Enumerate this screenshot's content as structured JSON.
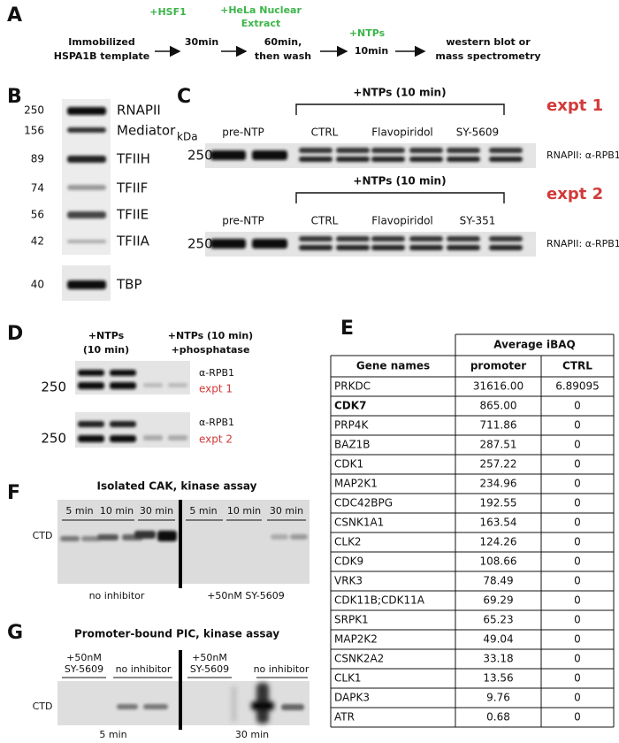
{
  "panel_a": {
    "letter": "A",
    "template": [
      "Immobilized",
      "HSPA1B template"
    ],
    "steps": [
      {
        "add": [
          "+HSF1"
        ],
        "time": [
          "30min"
        ]
      },
      {
        "add": [
          "+HeLa Nuclear",
          "Extract"
        ],
        "time": [
          "60min,",
          "then wash"
        ]
      },
      {
        "add": [
          "+NTPs"
        ],
        "time": [
          "10min"
        ]
      }
    ],
    "readout": [
      "western blot or",
      "mass spectrometry"
    ]
  },
  "panel_b": {
    "letter": "B",
    "rows": [
      {
        "kda": "250",
        "label": "RNAPII"
      },
      {
        "kda": "156",
        "label": "Mediator"
      },
      {
        "kda": "89",
        "label": "TFIIH"
      },
      {
        "kda": "74",
        "label": "TFIIF"
      },
      {
        "kda": "56",
        "label": "TFIIE"
      },
      {
        "kda": "42",
        "label": "TFIIA"
      },
      {
        "kda": "40",
        "label": "TBP"
      }
    ]
  },
  "panel_c": {
    "letter": "C",
    "unit": "kDa",
    "experiments": [
      {
        "bracket": "+NTPs (10 min)",
        "name": "expt 1",
        "lanes": [
          "pre-NTP",
          "CTRL",
          "Flavopiridol",
          "SY-5609"
        ],
        "kda": "250",
        "blot": "RNAPII: α-RPB1"
      },
      {
        "bracket": "+NTPs (10 min)",
        "name": "expt 2",
        "lanes": [
          "pre-NTP",
          "CTRL",
          "Flavopiridol",
          "SY-351"
        ],
        "kda": "250",
        "blot": "RNAPII: α-RPB1"
      }
    ]
  },
  "panel_d": {
    "letter": "D",
    "lanes": [
      [
        "+NTPs",
        "(10 min)"
      ],
      [
        "+NTPs (10 min)",
        "+phosphatase"
      ]
    ],
    "blots": [
      {
        "kda": "250",
        "antibody": "α-RPB1",
        "name": "expt 1"
      },
      {
        "kda": "250",
        "antibody": "α-RPB1",
        "name": "expt 2"
      }
    ]
  },
  "panel_e": {
    "letter": "E",
    "group_header": "Average iBAQ",
    "columns": [
      "Gene names",
      "promoter",
      "CTRL"
    ],
    "rows": [
      {
        "gene": "PRKDC",
        "promoter": "31616.00",
        "ctrl": "6.89095"
      },
      {
        "gene": "CDK7",
        "promoter": "865.00",
        "ctrl": "0",
        "bold": true
      },
      {
        "gene": "PRP4K",
        "promoter": "711.86",
        "ctrl": "0"
      },
      {
        "gene": "BAZ1B",
        "promoter": "287.51",
        "ctrl": "0"
      },
      {
        "gene": "CDK1",
        "promoter": "257.22",
        "ctrl": "0"
      },
      {
        "gene": "MAP2K1",
        "promoter": "234.96",
        "ctrl": "0"
      },
      {
        "gene": "CDC42BPG",
        "promoter": "192.55",
        "ctrl": "0"
      },
      {
        "gene": "CSNK1A1",
        "promoter": "163.54",
        "ctrl": "0"
      },
      {
        "gene": "CLK2",
        "promoter": "124.26",
        "ctrl": "0"
      },
      {
        "gene": "CDK9",
        "promoter": "108.66",
        "ctrl": "0"
      },
      {
        "gene": "VRK3",
        "promoter": "78.49",
        "ctrl": "0"
      },
      {
        "gene": "CDK11B;CDK11A",
        "promoter": "69.29",
        "ctrl": "0"
      },
      {
        "gene": "SRPK1",
        "promoter": "65.23",
        "ctrl": "0"
      },
      {
        "gene": "MAP2K2",
        "promoter": "49.04",
        "ctrl": "0"
      },
      {
        "gene": "CSNK2A2",
        "promoter": "33.18",
        "ctrl": "0"
      },
      {
        "gene": "CLK1",
        "promoter": "13.56",
        "ctrl": "0"
      },
      {
        "gene": "DAPK3",
        "promoter": "9.76",
        "ctrl": "0"
      },
      {
        "gene": "ATR",
        "promoter": "0.68",
        "ctrl": "0"
      }
    ]
  },
  "panel_f": {
    "letter": "F",
    "title": "Isolated CAK, kinase assay",
    "band": "CTD",
    "times": [
      "5 min",
      "10 min",
      "30 min",
      "5 min",
      "10 min",
      "30 min"
    ],
    "conditions": [
      "no inhibitor",
      "+50nM SY-5609"
    ]
  },
  "panel_g": {
    "letter": "G",
    "title": "Promoter-bound PIC, kinase assay",
    "band": "CTD",
    "conditions": [
      [
        "+50nM",
        "SY-5609"
      ],
      [
        "no inhibitor"
      ],
      [
        "+50nM",
        "SY-5609"
      ],
      [
        "no inhibitor"
      ]
    ],
    "times": [
      "5 min",
      "30 min"
    ]
  }
}
